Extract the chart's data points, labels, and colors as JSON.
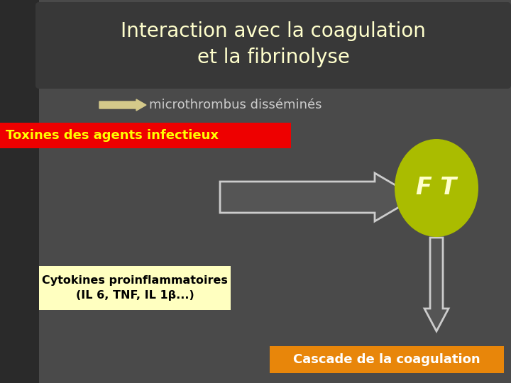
{
  "title_line1": "Interaction avec la coagulation",
  "title_line2": "et la fibrinolyse",
  "title_color": "#FFFFCC",
  "title_fontsize": 20,
  "bg_color": "#4A4A4A",
  "left_bar_color": "#2A2A2A",
  "title_bg_color": "#3A3A3A",
  "arrow1_color": "#D4C98A",
  "arrow1_text": "microthrombus disséminés",
  "arrow1_text_color": "#CCCCCC",
  "box1_text": "Toxines des agents infectieux",
  "box1_bg": "#EE0000",
  "box1_text_color": "#FFFF00",
  "box2_text_line1": "Cytokines proinflammatoires",
  "box2_text_line2": "(IL 6, TNF, IL 1β...)",
  "box2_bg": "#FFFFC0",
  "box2_text_color": "#000000",
  "box3_text": "Cascade de la coagulation",
  "box3_bg": "#E8860A",
  "box3_text_color": "#FFFFFF",
  "ellipse_color": "#AABC00",
  "ellipse_text": "F T",
  "ellipse_text_color": "#FFFFCC",
  "big_arrow_body_color": "#555555",
  "big_arrow_edge_color": "#CCCCCC",
  "down_arrow_body_color": "#555555",
  "down_arrow_edge_color": "#CCCCCC",
  "small_arrow_color": "#D4C98A"
}
